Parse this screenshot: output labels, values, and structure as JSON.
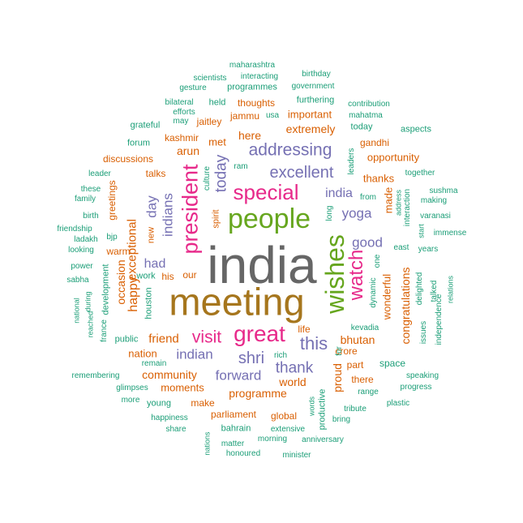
{
  "palette": {
    "teal": "#1b9e77",
    "orange": "#d95f02",
    "purple": "#7570b3",
    "pink": "#e7298a",
    "green": "#66a61e",
    "gold": "#a6761d",
    "gray": "#666666"
  },
  "words": [
    {
      "text": "india",
      "color": "gray"
    },
    {
      "text": "meeting",
      "color": "gold"
    },
    {
      "text": "people",
      "color": "green"
    },
    {
      "text": "wishes",
      "color": "green"
    },
    {
      "text": "special",
      "color": "pink"
    },
    {
      "text": "great",
      "color": "pink"
    },
    {
      "text": "president",
      "color": "pink"
    },
    {
      "text": "watch",
      "color": "pink"
    },
    {
      "text": "addressing",
      "color": "purple"
    },
    {
      "text": "excellent",
      "color": "purple"
    },
    {
      "text": "today",
      "color": "purple"
    },
    {
      "text": "visit",
      "color": "pink"
    },
    {
      "text": "this",
      "color": "purple"
    },
    {
      "text": "shri",
      "color": "purple"
    },
    {
      "text": "thank",
      "color": "purple"
    },
    {
      "text": "forward",
      "color": "purple"
    },
    {
      "text": "indians",
      "color": "purple"
    },
    {
      "text": "indian",
      "color": "purple"
    },
    {
      "text": "india",
      "color": "purple"
    },
    {
      "text": "good",
      "color": "purple"
    },
    {
      "text": "yoga",
      "color": "purple"
    },
    {
      "text": "day",
      "color": "purple"
    },
    {
      "text": "had",
      "color": "purple"
    },
    {
      "text": "happy",
      "color": "orange"
    },
    {
      "text": "exceptional",
      "color": "orange"
    },
    {
      "text": "occasion",
      "color": "orange"
    },
    {
      "text": "extremely",
      "color": "orange"
    },
    {
      "text": "here",
      "color": "orange"
    },
    {
      "text": "met",
      "color": "orange"
    },
    {
      "text": "arun",
      "color": "orange"
    },
    {
      "text": "programme",
      "color": "orange"
    },
    {
      "text": "world",
      "color": "orange"
    },
    {
      "text": "bhutan",
      "color": "orange"
    },
    {
      "text": "community",
      "color": "orange"
    },
    {
      "text": "friend",
      "color": "orange"
    },
    {
      "text": "nation",
      "color": "orange"
    },
    {
      "text": "moments",
      "color": "orange"
    },
    {
      "text": "proud",
      "color": "orange"
    },
    {
      "text": "congratulations",
      "color": "orange"
    },
    {
      "text": "wonderful",
      "color": "orange"
    },
    {
      "text": "made",
      "color": "orange"
    },
    {
      "text": "thanks",
      "color": "orange"
    },
    {
      "text": "opportunity",
      "color": "orange"
    },
    {
      "text": "gandhi",
      "color": "orange"
    },
    {
      "text": "thoughts",
      "color": "orange"
    },
    {
      "text": "important",
      "color": "orange"
    },
    {
      "text": "jammu",
      "color": "orange"
    },
    {
      "text": "kashmir",
      "color": "orange"
    },
    {
      "text": "jaitley",
      "color": "orange"
    },
    {
      "text": "discussions",
      "color": "orange"
    },
    {
      "text": "talks",
      "color": "orange"
    },
    {
      "text": "greetings",
      "color": "orange"
    },
    {
      "text": "warm",
      "color": "orange"
    },
    {
      "text": "new",
      "color": "orange"
    },
    {
      "text": "our",
      "color": "orange"
    },
    {
      "text": "his",
      "color": "orange"
    },
    {
      "text": "spirit",
      "color": "orange"
    },
    {
      "text": "make",
      "color": "orange"
    },
    {
      "text": "parliament",
      "color": "orange"
    },
    {
      "text": "global",
      "color": "orange"
    },
    {
      "text": "there",
      "color": "orange"
    },
    {
      "text": "part",
      "color": "orange"
    },
    {
      "text": "crore",
      "color": "orange"
    },
    {
      "text": "life",
      "color": "orange"
    },
    {
      "text": "maharashtra",
      "color": "teal"
    },
    {
      "text": "birthday",
      "color": "teal"
    },
    {
      "text": "scientists",
      "color": "teal"
    },
    {
      "text": "interacting",
      "color": "teal"
    },
    {
      "text": "gesture",
      "color": "teal"
    },
    {
      "text": "programmes",
      "color": "teal"
    },
    {
      "text": "government",
      "color": "teal"
    },
    {
      "text": "bilateral",
      "color": "teal"
    },
    {
      "text": "held",
      "color": "teal"
    },
    {
      "text": "furthering",
      "color": "teal"
    },
    {
      "text": "contribution",
      "color": "teal"
    },
    {
      "text": "efforts",
      "color": "teal"
    },
    {
      "text": "usa",
      "color": "teal"
    },
    {
      "text": "mahatma",
      "color": "teal"
    },
    {
      "text": "may",
      "color": "teal"
    },
    {
      "text": "grateful",
      "color": "teal"
    },
    {
      "text": "today",
      "color": "teal"
    },
    {
      "text": "aspects",
      "color": "teal"
    },
    {
      "text": "forum",
      "color": "teal"
    },
    {
      "text": "leaders",
      "color": "teal"
    },
    {
      "text": "leader",
      "color": "teal"
    },
    {
      "text": "ram",
      "color": "teal"
    },
    {
      "text": "culture",
      "color": "teal"
    },
    {
      "text": "together",
      "color": "teal"
    },
    {
      "text": "these",
      "color": "teal"
    },
    {
      "text": "sushma",
      "color": "teal"
    },
    {
      "text": "family",
      "color": "teal"
    },
    {
      "text": "from",
      "color": "teal"
    },
    {
      "text": "making",
      "color": "teal"
    },
    {
      "text": "address",
      "color": "teal"
    },
    {
      "text": "interaction",
      "color": "teal"
    },
    {
      "text": "birth",
      "color": "teal"
    },
    {
      "text": "long",
      "color": "teal"
    },
    {
      "text": "varanasi",
      "color": "teal"
    },
    {
      "text": "friendship",
      "color": "teal"
    },
    {
      "text": "start",
      "color": "teal"
    },
    {
      "text": "immense",
      "color": "teal"
    },
    {
      "text": "ladakh",
      "color": "teal"
    },
    {
      "text": "bjp",
      "color": "teal"
    },
    {
      "text": "looking",
      "color": "teal"
    },
    {
      "text": "east",
      "color": "teal"
    },
    {
      "text": "years",
      "color": "teal"
    },
    {
      "text": "one",
      "color": "teal"
    },
    {
      "text": "power",
      "color": "teal"
    },
    {
      "text": "work",
      "color": "teal"
    },
    {
      "text": "delighted",
      "color": "teal"
    },
    {
      "text": "talked",
      "color": "teal"
    },
    {
      "text": "relations",
      "color": "teal"
    },
    {
      "text": "sabha",
      "color": "teal"
    },
    {
      "text": "dynamic",
      "color": "teal"
    },
    {
      "text": "development",
      "color": "teal"
    },
    {
      "text": "during",
      "color": "teal"
    },
    {
      "text": "national",
      "color": "teal"
    },
    {
      "text": "houston",
      "color": "teal"
    },
    {
      "text": "reached",
      "color": "teal"
    },
    {
      "text": "france",
      "color": "teal"
    },
    {
      "text": "public",
      "color": "teal"
    },
    {
      "text": "issues",
      "color": "teal"
    },
    {
      "text": "independence",
      "color": "teal"
    },
    {
      "text": "rich",
      "color": "teal"
    },
    {
      "text": "remain",
      "color": "teal"
    },
    {
      "text": "for",
      "color": "teal"
    },
    {
      "text": "space",
      "color": "teal"
    },
    {
      "text": "kevadia",
      "color": "teal"
    },
    {
      "text": "remembering",
      "color": "teal"
    },
    {
      "text": "speaking",
      "color": "teal"
    },
    {
      "text": "glimpses",
      "color": "teal"
    },
    {
      "text": "progress",
      "color": "teal"
    },
    {
      "text": "range",
      "color": "teal"
    },
    {
      "text": "more",
      "color": "teal"
    },
    {
      "text": "young",
      "color": "teal"
    },
    {
      "text": "plastic",
      "color": "teal"
    },
    {
      "text": "words",
      "color": "teal"
    },
    {
      "text": "productive",
      "color": "teal"
    },
    {
      "text": "tribute",
      "color": "teal"
    },
    {
      "text": "happiness",
      "color": "teal"
    },
    {
      "text": "bring",
      "color": "teal"
    },
    {
      "text": "share",
      "color": "teal"
    },
    {
      "text": "bahrain",
      "color": "teal"
    },
    {
      "text": "extensive",
      "color": "teal"
    },
    {
      "text": "matter",
      "color": "teal"
    },
    {
      "text": "morning",
      "color": "teal"
    },
    {
      "text": "anniversary",
      "color": "teal"
    },
    {
      "text": "nations",
      "color": "teal"
    },
    {
      "text": "honoured",
      "color": "teal"
    },
    {
      "text": "minister",
      "color": "teal"
    }
  ]
}
